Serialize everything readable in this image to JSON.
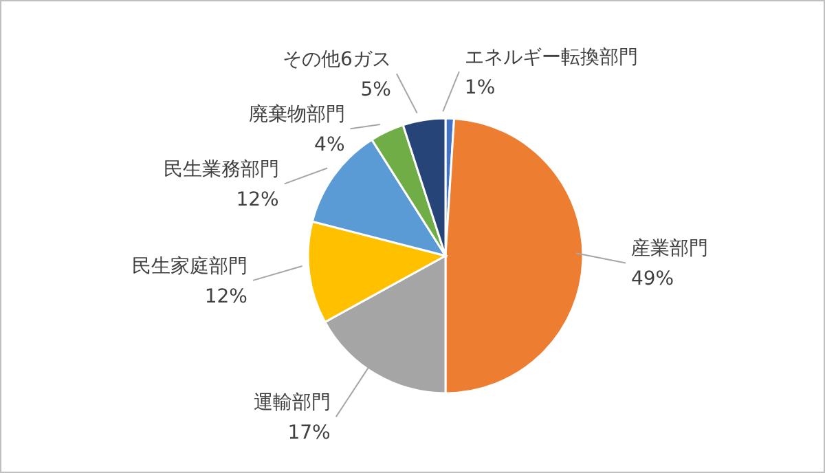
{
  "chart_data": {
    "type": "pie",
    "categories": [
      "エネルギー転換部門",
      "産業部門",
      "運輸部門",
      "民生家庭部門",
      "民生業務部門",
      "廃棄物部門",
      "その他6ガス"
    ],
    "values": [
      1,
      49,
      17,
      12,
      12,
      4,
      5
    ],
    "colors": [
      "#4472c4",
      "#ed7d31",
      "#a5a5a5",
      "#ffc000",
      "#5b9bd5",
      "#70ad47",
      "#264478"
    ],
    "value_labels": [
      "1%",
      "49%",
      "17%",
      "12%",
      "12%",
      "4%",
      "5%"
    ]
  }
}
